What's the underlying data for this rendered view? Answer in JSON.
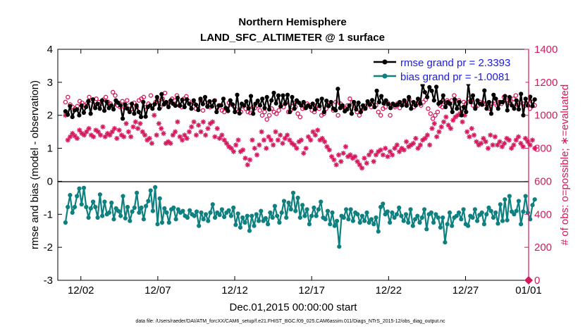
{
  "chart_data": {
    "type": "line",
    "title": [
      "Northern Hemisphere",
      "LAND_SFC_ALTIMETER @ 1 surface"
    ],
    "xlabel": "Dec.01,2015 00:00:00 start",
    "ylabel_left": "rmse and bias (model - observation)",
    "ylabel_right": "# of obs: o=possible; ∗=evaluated",
    "footnote": "data file: /Users/raeder/DAI/ATM_forcXX/CAM6_setup/f.e21.FHIST_BGC.f09_025.CAM6assim.011/Diags_NTrS_2015-12/obs_diag_output.nc",
    "xlim": [
      0.5,
      31.1
    ],
    "ylim_left": [
      -3,
      4
    ],
    "ylim_right": [
      0,
      1400
    ],
    "x_ticks": [
      2,
      7,
      12,
      17,
      22,
      27,
      32
    ],
    "x_ticklabels": [
      "12/02",
      "12/07",
      "12/12",
      "12/17",
      "12/22",
      "12/27",
      "01/01"
    ],
    "y_ticks_left": [
      -3,
      -2,
      -1,
      0,
      1,
      2,
      3,
      4
    ],
    "y_ticks_right": [
      0,
      200,
      400,
      600,
      800,
      1000,
      1200,
      1400
    ],
    "legend": {
      "position": "top-right",
      "entries": [
        "rmse grand pr = 2.3393",
        "bias grand pr = -1.0081"
      ]
    },
    "colors": {
      "rmse": "#000000",
      "bias": "#0f8080",
      "obs": "#d6185e",
      "zero_line": "#000000",
      "legend_text": "#1a1ae6"
    },
    "series": [
      {
        "name": "rmse",
        "axis": "left",
        "values": [
          2.12,
          2.02,
          2.28,
          1.95,
          2.15,
          2.18,
          2.0,
          2.3,
          2.08,
          2.25,
          2.43,
          2.05,
          2.48,
          2.22,
          2.35,
          2.2,
          2.45,
          2.14,
          2.41,
          2.22,
          2.3,
          2.18,
          2.45,
          2.38,
          2.3,
          1.9,
          2.33,
          2.2,
          2.1,
          2.35,
          2.05,
          2.3,
          2.1,
          1.95,
          2.4,
          1.96,
          2.25,
          2.3,
          2.2,
          2.34,
          2.55,
          2.2,
          2.64,
          2.33,
          2.4,
          2.25,
          2.45,
          2.35,
          2.29,
          2.53,
          2.29,
          2.47,
          2.25,
          2.48,
          2.35,
          2.2,
          2.45,
          2.32,
          2.16,
          2.5,
          2.34,
          2.55,
          2.26,
          2.42,
          2.27,
          2.44,
          2.1,
          2.3,
          2.3,
          2.5,
          2.22,
          2.13,
          2.45,
          2.33,
          2.1,
          2.62,
          2.06,
          2.35,
          2.3,
          2.42,
          2.21,
          2.58,
          2.05,
          2.35,
          2.44,
          2.3,
          2.5,
          2.22,
          2.55,
          2.18,
          2.45,
          2.68,
          2.36,
          2.6,
          2.27,
          2.6,
          2.35,
          2.62,
          2.1,
          2.55,
          2.2,
          2.45,
          2.38,
          2.3,
          2.4,
          2.22,
          2.3,
          2.25,
          2.35,
          2.18,
          2.45,
          2.28,
          2.5,
          2.1,
          2.44,
          2.28,
          2.4,
          2.2,
          2.15,
          2.8,
          2.22,
          2.3,
          2.12,
          2.18,
          2.3,
          2.05,
          2.4,
          2.18,
          2.38,
          2.1,
          2.3,
          2.2,
          2.42,
          2.32,
          2.46,
          2.25,
          2.74,
          2.4,
          2.58,
          2.36,
          2.45,
          2.34,
          2.22,
          2.35,
          2.3,
          2.32,
          2.4,
          2.3,
          2.45,
          2.29,
          2.55,
          2.2,
          2.4,
          2.3,
          2.5,
          2.35,
          2.92,
          2.7,
          2.55,
          2.85,
          2.74,
          2.45,
          2.86,
          2.35,
          2.4,
          2.6,
          2.25,
          2.4,
          2.35,
          2.1,
          2.48,
          2.2,
          2.4,
          2.0,
          2.25,
          2.1,
          2.95,
          2.4,
          2.6,
          2.2,
          2.45,
          2.35,
          2.32,
          2.75,
          2.2,
          2.4,
          2.05,
          2.62,
          2.5,
          2.2,
          2.4,
          2.4,
          2.58,
          2.15,
          2.55,
          2.3,
          2.2,
          2.45,
          2.18,
          2.65,
          2.0,
          2.5,
          2.3,
          2.56,
          2.28,
          2.48
        ]
      },
      {
        "name": "bias",
        "axis": "left",
        "values": [
          -1.25,
          -0.78,
          -0.42,
          -0.95,
          -0.78,
          -0.45,
          -0.22,
          -0.7,
          -0.2,
          -0.78,
          -1.1,
          -0.82,
          -0.62,
          -0.78,
          -1.1,
          -0.4,
          -1.05,
          -0.62,
          -1.0,
          -0.95,
          -0.65,
          -1.15,
          -0.82,
          -0.9,
          -1.05,
          -0.45,
          -1.12,
          -0.78,
          -1.2,
          -0.92,
          -0.8,
          -0.35,
          -0.95,
          -0.8,
          -1.15,
          -0.75,
          -0.6,
          -0.28,
          -0.9,
          -0.18,
          -1.3,
          -0.52,
          -1.25,
          -0.82,
          -0.95,
          -1.25,
          -0.85,
          -0.8,
          -1.15,
          -0.85,
          -0.95,
          -0.9,
          -1.05,
          -1.1,
          -0.88,
          -1.0,
          -1.05,
          -0.92,
          -1.35,
          -0.95,
          -1.15,
          -1.0,
          -1.2,
          -0.95,
          -0.7,
          -1.1,
          -0.95,
          -1.02,
          -0.85,
          -1.08,
          -0.95,
          -0.88,
          -1.05,
          -0.8,
          -1.32,
          -0.98,
          -1.4,
          -1.1,
          -1.25,
          -1.05,
          -1.5,
          -1.05,
          -1.35,
          -1.0,
          -1.2,
          -0.9,
          -1.2,
          -1.12,
          -1.3,
          -0.95,
          -1.1,
          -0.75,
          -1.05,
          -1.25,
          -0.95,
          -0.6,
          -1.1,
          -0.65,
          -0.85,
          -0.35,
          -0.9,
          -0.5,
          -1.1,
          -0.72,
          -1.05,
          -0.85,
          -1.3,
          -1.05,
          -0.8,
          -1.05,
          -0.85,
          -0.62,
          -1.1,
          -1.15,
          -0.9,
          -1.3,
          -0.95,
          -1.35,
          -1.2,
          -1.98,
          -1.05,
          -1.1,
          -0.85,
          -1.15,
          -0.85,
          -1.2,
          -0.95,
          -1.0,
          -1.25,
          -1.05,
          -1.2,
          -0.95,
          -1.25,
          -1.15,
          -1.3,
          -1.1,
          -1.52,
          -0.78,
          -0.68,
          -1.0,
          -0.92,
          -1.25,
          -0.95,
          -1.1,
          -1.0,
          -0.8,
          -1.05,
          -1.2,
          -1.0,
          -1.25,
          -0.85,
          -1.35,
          -1.15,
          -1.05,
          -1.25,
          -1.1,
          -0.85,
          -1.45,
          -1.0,
          -0.95,
          -1.25,
          -1.0,
          -1.1,
          -1.4,
          -1.1,
          -1.85,
          -1.3,
          -0.95,
          -1.35,
          -1.1,
          -1.05,
          -0.95,
          -1.15,
          -0.85,
          -1.3,
          -1.35,
          -1.05,
          -1.1,
          -0.85,
          -1.2,
          -1.02,
          -0.95,
          -1.3,
          -1.0,
          -0.8,
          -0.9,
          -1.1,
          -0.95,
          -1.28,
          -0.7,
          -1.2,
          -0.55,
          -1.18,
          -0.45,
          -0.92,
          -1.0,
          -0.9,
          -0.6,
          -1.3,
          -0.92,
          -0.45,
          -0.95,
          -1.15,
          -0.72,
          -0.55
        ]
      },
      {
        "name": "obs_possible",
        "axis": "right",
        "marker": "o",
        "values": [
          1080,
          1110,
          1065,
          1050,
          1040,
          1055,
          1085,
          1075,
          1060,
          1070,
          1110,
          1090,
          1065,
          1100,
          1080,
          1070,
          1095,
          1110,
          1080,
          1070,
          1140,
          1120,
          1060,
          1050,
          1085,
          1045,
          1090,
          1060,
          1040,
          1075,
          1050,
          1090,
          1100,
          1110,
          1050,
          1070,
          1120,
          1060,
          1080,
          1090,
          1050,
          1100,
          1135,
          1070,
          1080,
          1100,
          1090,
          1120,
          1060,
          1050,
          1100,
          1115,
          1085,
          1065,
          1075,
          1040,
          1050,
          1090,
          1030,
          1080,
          1055,
          1050,
          1075,
          1090,
          1045,
          1060,
          1030,
          1020,
          1040,
          1075,
          1065,
          1055,
          1035,
          1025,
          1020,
          1055,
          1040,
          1020,
          1015,
          1050,
          1045,
          1060,
          1030,
          1000,
          1020,
          975,
          1000,
          1040,
          1020,
          1010,
          1030,
          1060,
          1050,
          1075,
          1020,
          1030,
          1075,
          1050,
          1010,
          990,
          1040,
          1045,
          1070,
          1060,
          1030,
          1020,
          1060,
          1040,
          1000,
          1010,
          1040,
          1060,
          1070,
          1030,
          1080,
          1000,
          1070,
          1050,
          1040,
          1060,
          1100,
          1080,
          1060,
          1020,
          1000,
          1050,
          1040,
          1060,
          1070,
          1050,
          1080,
          1060,
          1020,
          1000,
          1040,
          1050,
          1075,
          1000,
          1060,
          1050,
          1070,
          1045,
          1070,
          1085,
          1065,
          1100,
          1075,
          1050,
          1070,
          1090,
          1060,
          1080,
          1095,
          1040,
          1010,
          980,
          1000,
          1020,
          1060,
          1050,
          1080,
          1090,
          1070,
          1090,
          1120,
          1070,
          1090,
          1040,
          1080,
          1070,
          1100,
          1090,
          1060,
          1050,
          1060,
          1080,
          1075,
          1070,
          1060,
          1040,
          1070,
          1090,
          1060,
          1080,
          1070,
          1110,
          1090,
          1075,
          1085,
          1100,
          1120,
          1060,
          1080,
          1070,
          1060,
          1090,
          1040,
          1080,
          1060
        ]
      },
      {
        "name": "obs_evaluated",
        "axis": "right",
        "marker": "*",
        "values": [
          1000,
          850,
          870,
          890,
          875,
          860,
          910,
          890,
          880,
          900,
          920,
          880,
          870,
          910,
          900,
          880,
          930,
          870,
          890,
          880,
          900,
          920,
          860,
          910,
          880,
          870,
          950,
          900,
          870,
          930,
          960,
          920,
          950,
          900,
          880,
          850,
          860,
          830,
          1000,
          880,
          950,
          920,
          890,
          830,
          840,
          830,
          880,
          900,
          960,
          870,
          850,
          880,
          860,
          900,
          930,
          960,
          880,
          940,
          900,
          960,
          880,
          920,
          950,
          960,
          870,
          920,
          860,
          880,
          850,
          830,
          810,
          800,
          780,
          820,
          850,
          780,
          790,
          740,
          700,
          730,
          850,
          800,
          760,
          820,
          900,
          850,
          800,
          870,
          850,
          820,
          900,
          850,
          880,
          830,
          860,
          880,
          850,
          830,
          820,
          800,
          840,
          850,
          770,
          800,
          870,
          850,
          900,
          880,
          910,
          850,
          860,
          840,
          810,
          790,
          750,
          730,
          700,
          760,
          720,
          770,
          810,
          750,
          760,
          740,
          750,
          720,
          700,
          680,
          740,
          710,
          760,
          780,
          720,
          760,
          780,
          790,
          760,
          800,
          750,
          780,
          760,
          800,
          820,
          780,
          800,
          790,
          840,
          810,
          820,
          830,
          860,
          800,
          820,
          850,
          860,
          880,
          820,
          920,
          950,
          870,
          900,
          930,
          960,
          990,
          940,
          920,
          970,
          990,
          1000,
          1010,
          960,
          1000,
          900,
          870,
          920,
          880,
          840,
          820,
          830,
          860,
          840,
          800,
          880,
          820,
          870,
          820,
          840,
          810,
          830,
          860,
          850,
          800,
          820,
          850,
          870,
          830,
          810,
          860,
          840,
          820,
          850,
          800
        ]
      }
    ]
  }
}
